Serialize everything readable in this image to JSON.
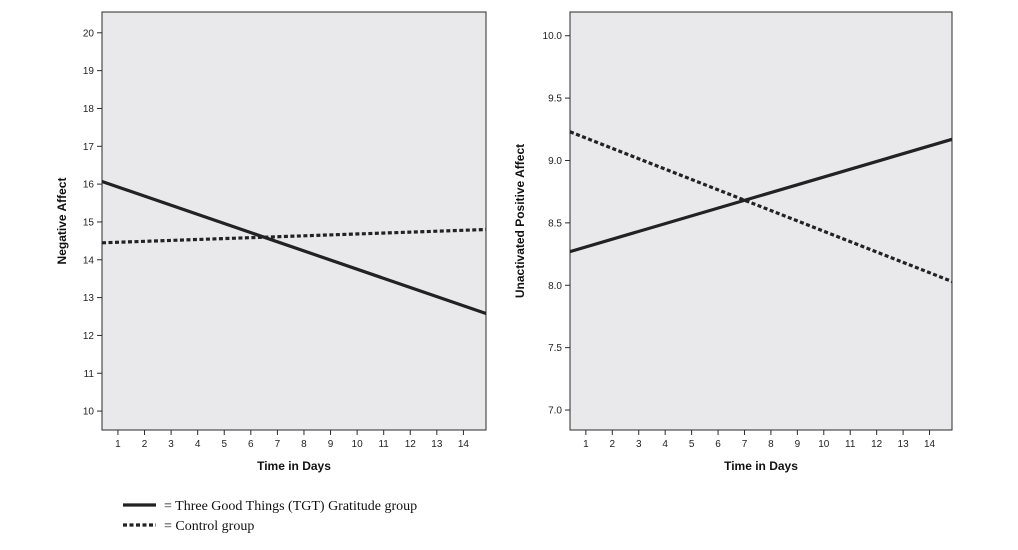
{
  "chart_data": [
    {
      "type": "line",
      "xlabel": "Time in Days",
      "ylabel": "Negative Affect",
      "x_ticks": [
        1,
        2,
        3,
        4,
        5,
        6,
        7,
        8,
        9,
        10,
        11,
        12,
        13,
        14
      ],
      "xlim": [
        0.4,
        14.85
      ],
      "y_ticks": [
        "10",
        "11",
        "12",
        "13",
        "14",
        "15",
        "16",
        "17",
        "18",
        "19",
        "20"
      ],
      "ylim": [
        9.5,
        20.55
      ],
      "grid": false,
      "series": [
        {
          "style": "solid",
          "x": [
            0.4,
            14.85
          ],
          "y": [
            16.07,
            12.58
          ]
        },
        {
          "style": "dotted",
          "x": [
            0.4,
            14.85
          ],
          "y": [
            14.45,
            14.8
          ]
        }
      ]
    },
    {
      "type": "line",
      "xlabel": "Time in Days",
      "ylabel": "Unactivated Positive Affect",
      "x_ticks": [
        1,
        2,
        3,
        4,
        5,
        6,
        7,
        8,
        9,
        10,
        11,
        12,
        13,
        14
      ],
      "xlim": [
        0.4,
        14.85
      ],
      "y_ticks": [
        "7.0",
        "7.5",
        "8.0",
        "8.5",
        "9.0",
        "9.5",
        "10.0"
      ],
      "ylim": [
        6.84,
        10.19
      ],
      "grid": false,
      "series": [
        {
          "style": "solid",
          "x": [
            0.4,
            14.85
          ],
          "y": [
            8.27,
            9.17
          ]
        },
        {
          "style": "dotted",
          "x": [
            0.4,
            14.85
          ],
          "y": [
            9.23,
            8.03
          ]
        }
      ]
    }
  ],
  "legend": [
    {
      "style": "solid",
      "label": "= Three Good Things (TGT) Gratitude group"
    },
    {
      "style": "dotted",
      "label": "= Control group"
    }
  ],
  "colors": {
    "plot_background": "#e9e9ec",
    "line": "#222222"
  }
}
